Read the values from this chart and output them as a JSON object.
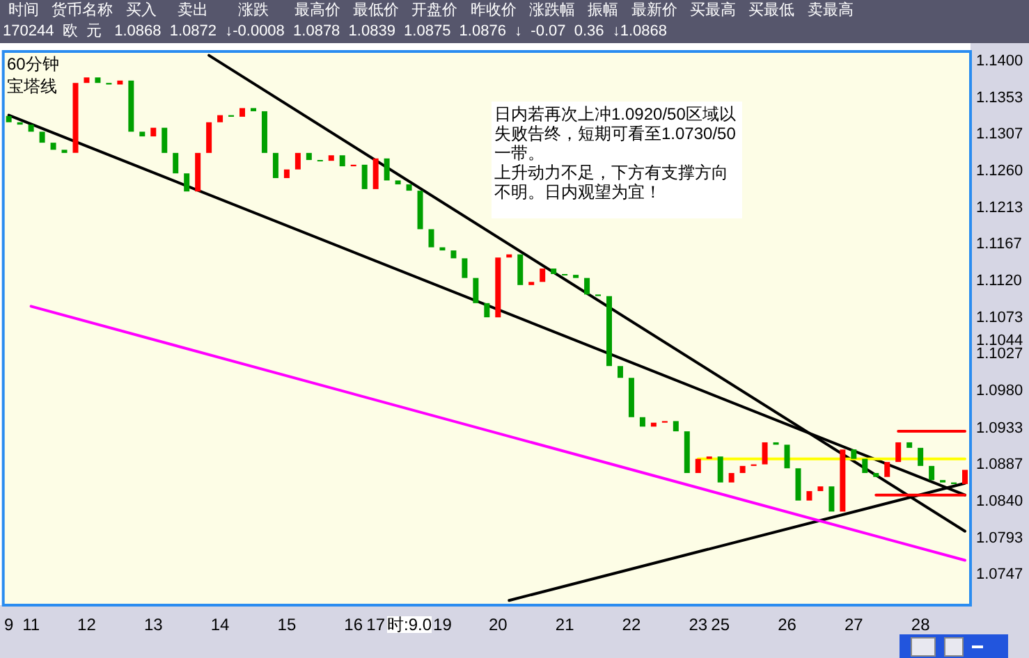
{
  "chart_data": {
    "type": "candlestick",
    "title": "60分钟",
    "subtitle": "宝塔线",
    "annotations": [
      "日内若再次上冲1.0920/50区域以失败告终，短期可看至1.0730/50一带。",
      "上升动力不足，下方有支撑方向不明。日内观望为宜！",
      "时间   货币名称   买入     卖出       涨跌      最高价   最低价   开盘价   昨收价   涨跌幅   振幅   最新价   买最高   买最低   卖最高",
      "170244  欧  元   1.0868  1.0872  ↓-0.0008  1.0878  1.0839  1.0875  1.0876  ↓  -0.07  0.36  ↓1.0868",
      "时:9.0"
    ],
    "categories": [
      "9",
      null,
      "11",
      null,
      null,
      null,
      null,
      "12",
      null,
      null,
      null,
      null,
      null,
      "13",
      null,
      null,
      null,
      null,
      null,
      "14",
      null,
      null,
      null,
      null,
      null,
      "15",
      null,
      null,
      null,
      null,
      null,
      "16",
      null,
      "17",
      null,
      null,
      null,
      null,
      null,
      "19",
      null,
      null,
      null,
      null,
      "20",
      null,
      null,
      null,
      null,
      null,
      "21",
      null,
      null,
      null,
      null,
      null,
      "22",
      null,
      null,
      null,
      null,
      null,
      "23",
      null,
      "25",
      null,
      null,
      null,
      null,
      null,
      "26",
      null,
      null,
      null,
      null,
      null,
      "27",
      null,
      null,
      null,
      null,
      null,
      "28",
      null,
      null,
      null,
      null
    ],
    "ohlc": [
      [
        1.133,
        1.133,
        1.1322,
        1.1322
      ],
      [
        1.1322,
        1.1322,
        1.1319,
        1.1319
      ],
      [
        1.1319,
        1.1319,
        1.131,
        1.131
      ],
      [
        1.131,
        1.131,
        1.1296,
        1.1296
      ],
      [
        1.1296,
        1.1296,
        1.1287,
        1.1287
      ],
      [
        1.1287,
        1.1287,
        1.1283,
        1.1283
      ],
      [
        1.1283,
        1.1372,
        1.1283,
        1.1372
      ],
      [
        1.1372,
        1.1379,
        1.1372,
        1.1379
      ],
      [
        1.1379,
        1.1379,
        1.1372,
        1.1372
      ],
      [
        1.1372,
        1.1372,
        1.137,
        1.137
      ],
      [
        1.137,
        1.1375,
        1.137,
        1.1375
      ],
      [
        1.1375,
        1.1375,
        1.131,
        1.131
      ],
      [
        1.131,
        1.131,
        1.1304,
        1.1304
      ],
      [
        1.1304,
        1.1315,
        1.1304,
        1.1315
      ],
      [
        1.1315,
        1.1315,
        1.1283,
        1.1283
      ],
      [
        1.1283,
        1.1283,
        1.1257,
        1.1257
      ],
      [
        1.1257,
        1.1257,
        1.1234,
        1.1234
      ],
      [
        1.1234,
        1.1283,
        1.1234,
        1.1283
      ],
      [
        1.1283,
        1.1322,
        1.1283,
        1.1322
      ],
      [
        1.1322,
        1.1331,
        1.1322,
        1.1331
      ],
      [
        1.1331,
        1.1331,
        1.1329,
        1.1329
      ],
      [
        1.1329,
        1.134,
        1.1329,
        1.134
      ],
      [
        1.134,
        1.134,
        1.1336,
        1.1336
      ],
      [
        1.1336,
        1.1336,
        1.1283,
        1.1283
      ],
      [
        1.1283,
        1.1283,
        1.1251,
        1.1251
      ],
      [
        1.1251,
        1.1262,
        1.1251,
        1.1262
      ],
      [
        1.1262,
        1.1283,
        1.1262,
        1.1283
      ],
      [
        1.1283,
        1.1283,
        1.1274,
        1.1274
      ],
      [
        1.1274,
        1.1274,
        1.1273,
        1.1273
      ],
      [
        1.1273,
        1.128,
        1.1273,
        1.128
      ],
      [
        1.128,
        1.128,
        1.1266,
        1.1266
      ],
      [
        1.1266,
        1.1268,
        1.1266,
        1.1268
      ],
      [
        1.1268,
        1.1268,
        1.1237,
        1.1237
      ],
      [
        1.1237,
        1.1276,
        1.1237,
        1.1276
      ],
      [
        1.1276,
        1.1276,
        1.1248,
        1.1248
      ],
      [
        1.1248,
        1.1248,
        1.1243,
        1.1243
      ],
      [
        1.1243,
        1.1243,
        1.1235,
        1.1235
      ],
      [
        1.1235,
        1.1235,
        1.1186,
        1.1186
      ],
      [
        1.1186,
        1.1186,
        1.1163,
        1.1163
      ],
      [
        1.1163,
        1.1163,
        1.1159,
        1.1159
      ],
      [
        1.1159,
        1.1159,
        1.1149,
        1.1149
      ],
      [
        1.1149,
        1.1149,
        1.1124,
        1.1124
      ],
      [
        1.1124,
        1.1124,
        1.1092,
        1.1092
      ],
      [
        1.1092,
        1.1092,
        1.1074,
        1.1074
      ],
      [
        1.1074,
        1.115,
        1.1074,
        1.115
      ],
      [
        1.115,
        1.1154,
        1.115,
        1.1154
      ],
      [
        1.1154,
        1.1154,
        1.1115,
        1.1115
      ],
      [
        1.1115,
        1.1119,
        1.1115,
        1.1119
      ],
      [
        1.1119,
        1.1136,
        1.1119,
        1.1136
      ],
      [
        1.1136,
        1.1136,
        1.1129,
        1.1129
      ],
      [
        1.1129,
        1.1129,
        1.1128,
        1.1128
      ],
      [
        1.1128,
        1.1128,
        1.1124,
        1.1124
      ],
      [
        1.1124,
        1.1124,
        1.1103,
        1.1103
      ],
      [
        1.1103,
        1.1103,
        1.1101,
        1.1101
      ],
      [
        1.1101,
        1.1101,
        1.1012,
        1.1012
      ],
      [
        1.1012,
        1.1012,
        1.0997,
        1.0997
      ],
      [
        1.0997,
        1.0997,
        1.0947,
        1.0947
      ],
      [
        1.0947,
        1.0947,
        1.0935,
        1.0935
      ],
      [
        1.0935,
        1.094,
        1.0935,
        1.094
      ],
      [
        1.094,
        1.0942,
        1.094,
        1.0942
      ],
      [
        1.0942,
        1.0942,
        1.0929,
        1.0929
      ],
      [
        1.0929,
        1.0929,
        1.0876,
        1.0876
      ],
      [
        1.0876,
        1.0894,
        1.0876,
        1.0894
      ],
      [
        1.0894,
        1.0897,
        1.0894,
        1.0897
      ],
      [
        1.0897,
        1.0897,
        1.0864,
        1.0864
      ],
      [
        1.0864,
        1.0876,
        1.0864,
        1.0876
      ],
      [
        1.0876,
        1.0885,
        1.0876,
        1.0885
      ],
      [
        1.0885,
        1.0887,
        1.0885,
        1.0887
      ],
      [
        1.0887,
        1.0915,
        1.0887,
        1.0915
      ],
      [
        1.0915,
        1.0915,
        1.0912,
        1.0912
      ],
      [
        1.0912,
        1.0912,
        1.0882,
        1.0882
      ],
      [
        1.0882,
        1.0882,
        1.0841,
        1.0841
      ],
      [
        1.0841,
        1.0853,
        1.0841,
        1.0853
      ],
      [
        1.0853,
        1.0859,
        1.0853,
        1.0859
      ],
      [
        1.0859,
        1.0859,
        1.0827,
        1.0827
      ],
      [
        1.0827,
        1.0906,
        1.0827,
        1.0906
      ],
      [
        1.0906,
        1.0906,
        1.0894,
        1.0894
      ],
      [
        1.0894,
        1.0894,
        1.0876,
        1.0876
      ],
      [
        1.0876,
        1.0876,
        1.0871,
        1.0871
      ],
      [
        1.0871,
        1.089,
        1.0871,
        1.089
      ],
      [
        1.089,
        1.0915,
        1.089,
        1.0915
      ],
      [
        1.0915,
        1.0915,
        1.0908,
        1.0908
      ],
      [
        1.0908,
        1.0908,
        1.0885,
        1.0885
      ],
      [
        1.0885,
        1.0885,
        1.0867,
        1.0867
      ],
      [
        1.0867,
        1.0867,
        1.0864,
        1.0864
      ],
      [
        1.0864,
        1.0864,
        1.0862,
        1.0862
      ],
      [
        1.0862,
        1.088,
        1.0862,
        1.088
      ]
    ],
    "colors": [
      "#00a000",
      "#00a000",
      "#00a000",
      "#00a000",
      "#00a000",
      "#00a000",
      "#ff0000",
      "#ff0000",
      "#00a000",
      "#00a000",
      "#ff0000",
      "#00a000",
      "#00a000",
      "#ff0000",
      "#00a000",
      "#00a000",
      "#00a000",
      "#ff0000",
      "#ff0000",
      "#ff0000",
      "#00a000",
      "#ff0000",
      "#00a000",
      "#00a000",
      "#00a000",
      "#ff0000",
      "#ff0000",
      "#00a000",
      "#00a000",
      "#ff0000",
      "#00a000",
      "#ff0000",
      "#00a000",
      "#ff0000",
      "#00a000",
      "#00a000",
      "#00a000",
      "#00a000",
      "#00a000",
      "#00a000",
      "#00a000",
      "#00a000",
      "#00a000",
      "#00a000",
      "#ff0000",
      "#ff0000",
      "#00a000",
      "#ff0000",
      "#ff0000",
      "#00a000",
      "#00a000",
      "#00a000",
      "#00a000",
      "#00a000",
      "#00a000",
      "#00a000",
      "#00a000",
      "#00a000",
      "#ff0000",
      "#ff0000",
      "#00a000",
      "#00a000",
      "#ff0000",
      "#ff0000",
      "#00a000",
      "#ff0000",
      "#ff0000",
      "#ff0000",
      "#ff0000",
      "#00a000",
      "#00a000",
      "#00a000",
      "#ff0000",
      "#ff0000",
      "#00a000",
      "#ff0000",
      "#00a000",
      "#00a000",
      "#00a000",
      "#ff0000",
      "#ff0000",
      "#00a000",
      "#00a000",
      "#00a000",
      "#00a000",
      "#00a000",
      "#ff0000"
    ],
    "series": [
      {
        "type": "line",
        "color": "#000000",
        "values": [
          null,
          null,
          null,
          null,
          null,
          null,
          null,
          null,
          null,
          null,
          null,
          null,
          null,
          null,
          null,
          null,
          null,
          null,
          1.1407,
          null,
          null,
          null,
          null,
          null,
          null,
          null,
          null,
          null,
          null,
          null,
          null,
          null,
          null,
          null,
          null,
          null,
          null,
          null,
          null,
          null,
          null,
          null,
          null,
          null,
          null,
          null,
          null,
          null,
          null,
          null,
          null,
          null,
          null,
          null,
          null,
          null,
          null,
          null,
          null,
          null,
          null,
          null,
          null,
          null,
          null,
          null,
          null,
          null,
          null,
          null,
          null,
          null,
          null,
          null,
          null,
          null,
          null,
          null,
          null,
          null,
          null,
          null,
          null,
          null,
          null,
          null,
          1.0802
        ]
      },
      {
        "type": "line",
        "color": "#000000",
        "values": [
          1.1331,
          null,
          null,
          null,
          null,
          null,
          null,
          null,
          null,
          null,
          null,
          null,
          null,
          null,
          null,
          null,
          null,
          null,
          null,
          null,
          null,
          null,
          null,
          null,
          null,
          null,
          null,
          null,
          null,
          null,
          null,
          null,
          null,
          null,
          null,
          null,
          null,
          null,
          null,
          null,
          null,
          null,
          null,
          null,
          null,
          null,
          null,
          null,
          null,
          null,
          null,
          null,
          null,
          null,
          null,
          null,
          null,
          null,
          null,
          null,
          null,
          null,
          null,
          null,
          null,
          null,
          null,
          null,
          null,
          null,
          null,
          null,
          null,
          null,
          null,
          null,
          null,
          null,
          null,
          null,
          null,
          null,
          null,
          null,
          null,
          null,
          1.0848
        ]
      },
      {
        "type": "line",
        "color": "#000000",
        "values": [
          null,
          null,
          null,
          null,
          null,
          null,
          null,
          null,
          null,
          null,
          null,
          null,
          null,
          null,
          null,
          null,
          null,
          null,
          null,
          null,
          null,
          null,
          null,
          null,
          null,
          null,
          null,
          null,
          null,
          null,
          null,
          null,
          null,
          null,
          null,
          null,
          null,
          null,
          null,
          null,
          null,
          null,
          null,
          null,
          null,
          1.0714,
          null,
          null,
          null,
          null,
          null,
          null,
          null,
          null,
          null,
          null,
          null,
          null,
          null,
          null,
          null,
          null,
          null,
          null,
          null,
          null,
          null,
          null,
          null,
          null,
          null,
          null,
          null,
          null,
          null,
          null,
          null,
          null,
          null,
          null,
          null,
          null,
          null,
          null,
          null,
          null,
          1.0863
        ]
      },
      {
        "type": "line",
        "color": "#ff00ff",
        "values": [
          null,
          null,
          1.1088,
          null,
          null,
          null,
          null,
          null,
          null,
          null,
          null,
          null,
          null,
          null,
          null,
          null,
          null,
          null,
          null,
          null,
          null,
          null,
          null,
          null,
          null,
          null,
          null,
          null,
          null,
          null,
          null,
          null,
          null,
          null,
          null,
          null,
          null,
          null,
          null,
          null,
          null,
          null,
          null,
          null,
          null,
          null,
          null,
          null,
          null,
          null,
          null,
          null,
          null,
          null,
          null,
          null,
          null,
          null,
          null,
          null,
          null,
          null,
          null,
          null,
          null,
          null,
          null,
          null,
          null,
          null,
          null,
          null,
          null,
          null,
          null,
          null,
          null,
          null,
          null,
          null,
          null,
          null,
          null,
          null,
          null,
          null,
          1.0765
        ]
      },
      {
        "type": "line",
        "color": "#ffff00",
        "values": [
          null,
          null,
          null,
          null,
          null,
          null,
          null,
          null,
          null,
          null,
          null,
          null,
          null,
          null,
          null,
          null,
          null,
          null,
          null,
          null,
          null,
          null,
          null,
          null,
          null,
          null,
          null,
          null,
          null,
          null,
          null,
          null,
          null,
          null,
          null,
          null,
          null,
          null,
          null,
          null,
          null,
          null,
          null,
          null,
          null,
          null,
          null,
          null,
          null,
          null,
          null,
          null,
          null,
          null,
          null,
          null,
          null,
          null,
          null,
          null,
          null,
          null,
          1.0894,
          null,
          null,
          null,
          null,
          null,
          null,
          null,
          null,
          null,
          null,
          null,
          null,
          null,
          null,
          null,
          null,
          null,
          null,
          null,
          null,
          null,
          null,
          null,
          1.0894
        ]
      },
      {
        "type": "line",
        "color": "#ff0000",
        "values": [
          null,
          null,
          null,
          null,
          null,
          null,
          null,
          null,
          null,
          null,
          null,
          null,
          null,
          null,
          null,
          null,
          null,
          null,
          null,
          null,
          null,
          null,
          null,
          null,
          null,
          null,
          null,
          null,
          null,
          null,
          null,
          null,
          null,
          null,
          null,
          null,
          null,
          null,
          null,
          null,
          null,
          null,
          null,
          null,
          null,
          null,
          null,
          null,
          null,
          null,
          null,
          null,
          null,
          null,
          null,
          null,
          null,
          null,
          null,
          null,
          null,
          null,
          null,
          null,
          null,
          null,
          null,
          null,
          null,
          null,
          null,
          null,
          null,
          null,
          null,
          null,
          null,
          null,
          null,
          null,
          1.0929,
          null,
          null,
          null,
          null,
          null,
          1.0929
        ]
      },
      {
        "type": "line",
        "color": "#ff0000",
        "values": [
          null,
          null,
          null,
          null,
          null,
          null,
          null,
          null,
          null,
          null,
          null,
          null,
          null,
          null,
          null,
          null,
          null,
          null,
          null,
          null,
          null,
          null,
          null,
          null,
          null,
          null,
          null,
          null,
          null,
          null,
          null,
          null,
          null,
          null,
          null,
          null,
          null,
          null,
          null,
          null,
          null,
          null,
          null,
          null,
          null,
          null,
          null,
          null,
          null,
          null,
          null,
          null,
          null,
          null,
          null,
          null,
          null,
          null,
          null,
          null,
          null,
          null,
          null,
          null,
          null,
          null,
          null,
          null,
          null,
          null,
          null,
          null,
          null,
          null,
          null,
          null,
          null,
          null,
          1.0848,
          null,
          null,
          null,
          null,
          null,
          null,
          null,
          1.0848
        ]
      }
    ],
    "marker": "none",
    "line_style": "solid",
    "ylim": [
      1.0708,
      1.1412
    ],
    "yticks": [
      {
        "value": 1.14,
        "label": "1.1400"
      },
      {
        "value": 1.1353,
        "label": "1.1353"
      },
      {
        "value": 1.1307,
        "label": "1.1307"
      },
      {
        "value": 1.126,
        "label": "1.1260"
      },
      {
        "value": 1.1213,
        "label": "1.1213"
      },
      {
        "value": 1.1167,
        "label": "1.1167"
      },
      {
        "value": 1.112,
        "label": "1.1120"
      },
      {
        "value": 1.1073,
        "label": "1.1073"
      },
      {
        "value": 1.1044,
        "label": "1.1044"
      },
      {
        "value": 1.1027,
        "label": "1.1027"
      },
      {
        "value": 1.098,
        "label": "1.0980"
      },
      {
        "value": 1.0933,
        "label": "1.0933"
      },
      {
        "value": 1.0887,
        "label": "1.0887"
      },
      {
        "value": 1.084,
        "label": "1.0840"
      },
      {
        "value": 1.0793,
        "label": "1.0793"
      },
      {
        "value": 1.0747,
        "label": "1.0747"
      }
    ]
  }
}
